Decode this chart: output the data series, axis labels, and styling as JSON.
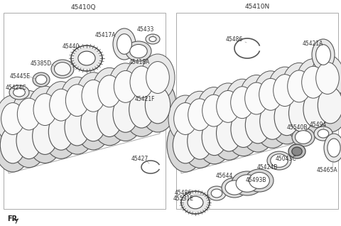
{
  "title_left": "45410Q",
  "title_right": "45410N",
  "fr_label": "FR",
  "bg_color": "#ffffff",
  "lc": "#555555",
  "lfs": 5.5,
  "tfs": 6.5
}
